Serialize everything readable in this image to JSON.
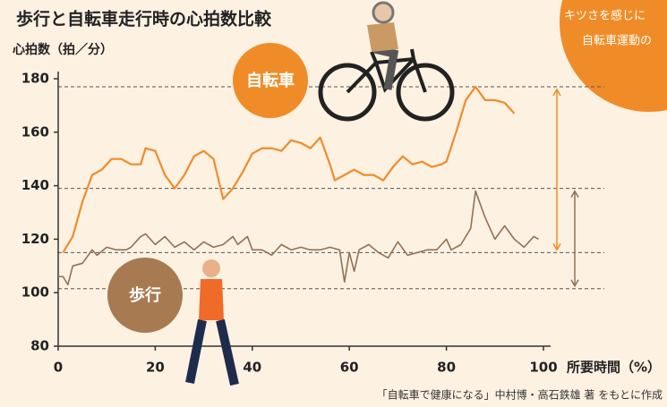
{
  "chart_data": {
    "type": "line",
    "title": "歩行と自転車走行時の心拍数比較",
    "y_label": "心拍数（拍／分）",
    "x_label": "所要時間（%）",
    "source": "「自転車で健康になる」中村博・高石鉄雄 著 をもとに作成",
    "annotations": [
      "自転車",
      "歩行",
      "キツさを感じに",
      "自転車運動の"
    ],
    "xlim": [
      0,
      100
    ],
    "ylim": [
      80,
      180
    ],
    "xticks": [
      0,
      20,
      40,
      60,
      80,
      100
    ],
    "yticks": [
      80,
      100,
      120,
      140,
      160,
      180
    ],
    "reference_lines": [
      177,
      139,
      115,
      101.5
    ],
    "series": [
      {
        "name": "自転車",
        "color": "#f08c28",
        "x": [
          1,
          3,
          5,
          7,
          9,
          11,
          13,
          15,
          17,
          18,
          20,
          22,
          24,
          26,
          28,
          30,
          32,
          34,
          36,
          38,
          40,
          42,
          44,
          46,
          48,
          50,
          52,
          54,
          56,
          57,
          59,
          61,
          63,
          65,
          67,
          69,
          71,
          73,
          75,
          77,
          79,
          80,
          82,
          84,
          86,
          88,
          90,
          92,
          94
        ],
        "values": [
          115,
          121,
          134,
          144,
          146,
          150,
          150,
          148,
          148,
          154,
          153,
          144,
          139,
          144,
          151,
          153,
          150,
          135,
          139,
          145,
          152,
          154,
          154,
          153,
          157,
          156,
          154,
          158,
          148,
          142,
          144,
          146,
          144,
          144,
          142,
          147,
          151,
          148,
          149,
          147,
          148,
          149,
          160,
          172,
          177,
          172,
          172,
          171,
          167
        ]
      },
      {
        "name": "歩行",
        "color": "#8f7257",
        "x": [
          0,
          1,
          2,
          3,
          5,
          7,
          8,
          10,
          12,
          14,
          15,
          17,
          18,
          20,
          22,
          24,
          26,
          28,
          30,
          32,
          34,
          36,
          37,
          39,
          40,
          42,
          44,
          46,
          48,
          50,
          52,
          54,
          56,
          58,
          59,
          60,
          61,
          62,
          64,
          66,
          68,
          70,
          72,
          74,
          76,
          78,
          80,
          81,
          83,
          85,
          86,
          88,
          90,
          92,
          94,
          96,
          98,
          99
        ],
        "values": [
          106,
          106,
          103,
          110,
          111,
          116,
          114,
          117,
          116,
          116,
          117,
          121,
          122,
          118,
          121,
          117,
          119,
          116,
          119,
          117,
          118,
          121,
          118,
          121,
          116,
          116,
          114,
          118,
          116,
          117,
          116,
          116,
          117,
          116,
          104,
          115,
          108,
          116,
          118,
          115,
          113,
          119,
          114,
          115,
          116,
          116,
          120,
          116,
          118,
          124,
          138,
          128,
          120,
          125,
          120,
          117,
          121,
          120
        ]
      }
    ]
  }
}
